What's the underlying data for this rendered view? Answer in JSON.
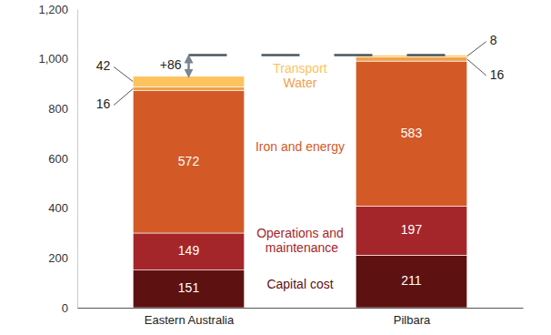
{
  "chart_data": {
    "type": "bar",
    "stacked": true,
    "data_labels": true,
    "grid": false,
    "categories": [
      "Eastern Australia",
      "Pilbara"
    ],
    "series": [
      {
        "name": "Capital cost",
        "color": "#5e1111",
        "values": [
          151,
          211
        ]
      },
      {
        "name": "Operations and maintenance",
        "color": "#a5262a",
        "values": [
          149,
          197
        ]
      },
      {
        "name": "Iron and energy",
        "color": "#d35a27",
        "values": [
          572,
          583
        ]
      },
      {
        "name": "Water",
        "color": "#f0a04b",
        "values": [
          16,
          16
        ]
      },
      {
        "name": "Transport",
        "color": "#fcc35e",
        "values": [
          42,
          8
        ]
      }
    ],
    "annotation": "+86",
    "ylim": [
      0,
      1200
    ],
    "yticks": [
      0,
      200,
      400,
      600,
      800,
      {
        "value": 1000,
        "label": "1,000"
      },
      {
        "value": 1200,
        "label": "1,200"
      }
    ]
  }
}
